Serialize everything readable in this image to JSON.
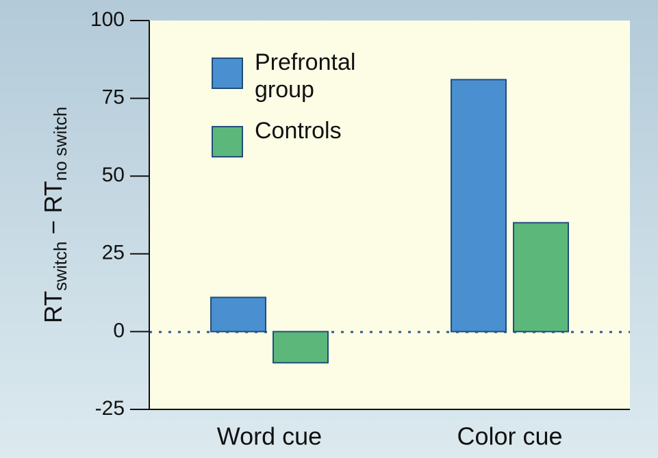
{
  "chart_data": {
    "type": "bar",
    "ylabel": [
      "RT",
      "switch",
      " − RT",
      "no switch"
    ],
    "categories": [
      "Word cue",
      "Color cue"
    ],
    "series": [
      {
        "name": "Prefrontal group",
        "color": "#4a8fd0",
        "values": [
          11,
          81
        ]
      },
      {
        "name": "Controls",
        "color": "#5cb87a",
        "values": [
          -10,
          35
        ]
      }
    ],
    "ylim": [
      -25,
      100
    ],
    "yticks": [
      -25,
      0,
      25,
      50,
      75,
      100
    ]
  }
}
